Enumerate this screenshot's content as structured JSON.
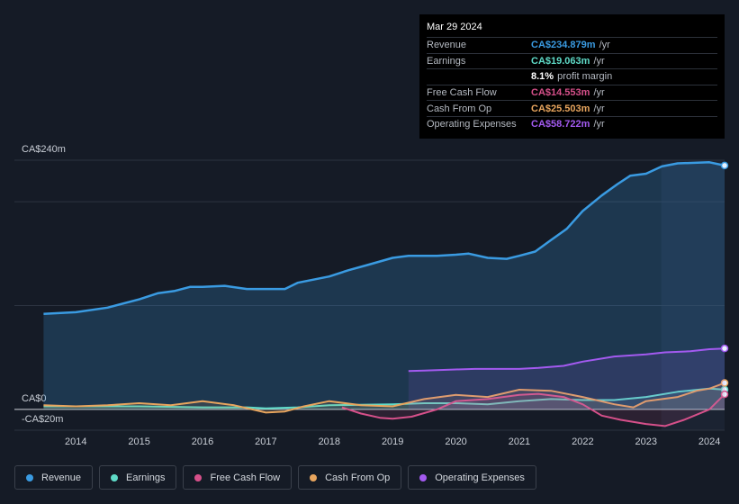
{
  "chart_data": {
    "type": "area-line",
    "xlim": [
      2013.03,
      2024.24
    ],
    "xticks": [
      2014,
      2015,
      2016,
      2017,
      2018,
      2019,
      2020,
      2021,
      2022,
      2023,
      2024
    ],
    "ylim": [
      -20,
      240
    ],
    "yticks": [
      {
        "value": 240,
        "label": "CA$240m"
      },
      {
        "value": 200,
        "label": null
      },
      {
        "value": 100,
        "label": null
      },
      {
        "value": 0,
        "label": "CA$0"
      },
      {
        "value": -20,
        "label": "-CA$20m"
      }
    ],
    "grid": true,
    "series": [
      {
        "name": "Revenue",
        "color": "#3a9be2",
        "x": [
          2013.49,
          2014,
          2014.5,
          2015,
          2015.3,
          2015.55,
          2015.8,
          2016,
          2016.35,
          2016.7,
          2017,
          2017.3,
          2017.5,
          2018,
          2018.3,
          2018.6,
          2019,
          2019.25,
          2019.7,
          2020,
          2020.2,
          2020.5,
          2020.8,
          2021,
          2021.25,
          2021.5,
          2021.75,
          2022,
          2022.3,
          2022.55,
          2022.75,
          2023,
          2023.25,
          2023.5,
          2024,
          2024.24
        ],
        "values": [
          92,
          93.6,
          98,
          106,
          112,
          114,
          118,
          118,
          119,
          116,
          116,
          116,
          122,
          128,
          134,
          139,
          146,
          148,
          148,
          149,
          150,
          146,
          145,
          148,
          152,
          163,
          174,
          191,
          206,
          217,
          225,
          227,
          234,
          237,
          238,
          234.879
        ]
      },
      {
        "name": "Earnings",
        "color": "#5fdbc8",
        "x": [
          2013.49,
          2014,
          2015,
          2016,
          2016.7,
          2017,
          2017.5,
          2018,
          2019,
          2019.5,
          2020,
          2020.5,
          2021,
          2021.5,
          2022,
          2022.5,
          2023,
          2023.5,
          2024,
          2024.24
        ],
        "values": [
          3,
          3,
          3,
          2,
          2,
          1,
          2,
          4,
          5,
          6,
          6,
          5,
          8,
          10,
          9,
          9,
          12,
          17,
          20,
          19.063
        ]
      },
      {
        "name": "Free Cash Flow",
        "color": "#d6508a",
        "x": [
          2018.2,
          2018.5,
          2018.8,
          2019,
          2019.3,
          2019.7,
          2020,
          2020.5,
          2021,
          2021.3,
          2021.7,
          2022,
          2022.3,
          2022.6,
          2023,
          2023.3,
          2023.6,
          2024,
          2024.24
        ],
        "values": [
          2,
          -4,
          -8,
          -9,
          -7,
          0,
          8,
          10,
          14,
          15,
          12,
          5,
          -6,
          -10,
          -14,
          -16,
          -10,
          0,
          14.553
        ]
      },
      {
        "name": "Cash From Op",
        "color": "#e8a55e",
        "x": [
          2013.49,
          2014,
          2014.5,
          2015,
          2015.5,
          2016,
          2016.5,
          2017,
          2017.3,
          2017.6,
          2018,
          2018.5,
          2019,
          2019.5,
          2020,
          2020.5,
          2021,
          2021.5,
          2022,
          2022.5,
          2022.8,
          2023,
          2023.5,
          2023.8,
          2024,
          2024.24
        ],
        "values": [
          4,
          3,
          4,
          6,
          4,
          8,
          4,
          -3,
          -2,
          3,
          8,
          4,
          3,
          10,
          14,
          12,
          19,
          18,
          12,
          5,
          2,
          8,
          12,
          18,
          20,
          25.503
        ]
      },
      {
        "name": "Operating Expenses",
        "color": "#a35af0",
        "x": [
          2019.25,
          2019.5,
          2020,
          2020.3,
          2021,
          2021.3,
          2021.7,
          2022,
          2022.5,
          2023,
          2023.3,
          2023.7,
          2024,
          2024.24
        ],
        "values": [
          37,
          37.5,
          38.5,
          39,
          39,
          40,
          42,
          46,
          51,
          53,
          55,
          56,
          58,
          58.722
        ]
      }
    ]
  },
  "tooltip": {
    "date": "Mar 29 2024",
    "rows": [
      {
        "label": "Revenue",
        "value": "CA$234.879m",
        "unit": "/yr"
      },
      {
        "label": "Earnings",
        "value": "CA$19.063m",
        "unit": "/yr"
      },
      {
        "value": "8.1%",
        "unit": "profit margin"
      },
      {
        "label": "Free Cash Flow",
        "value": "CA$14.553m",
        "unit": "/yr"
      },
      {
        "label": "Cash From Op",
        "value": "CA$25.503m",
        "unit": "/yr"
      },
      {
        "label": "Operating Expenses",
        "value": "CA$58.722m",
        "unit": "/yr"
      }
    ]
  }
}
